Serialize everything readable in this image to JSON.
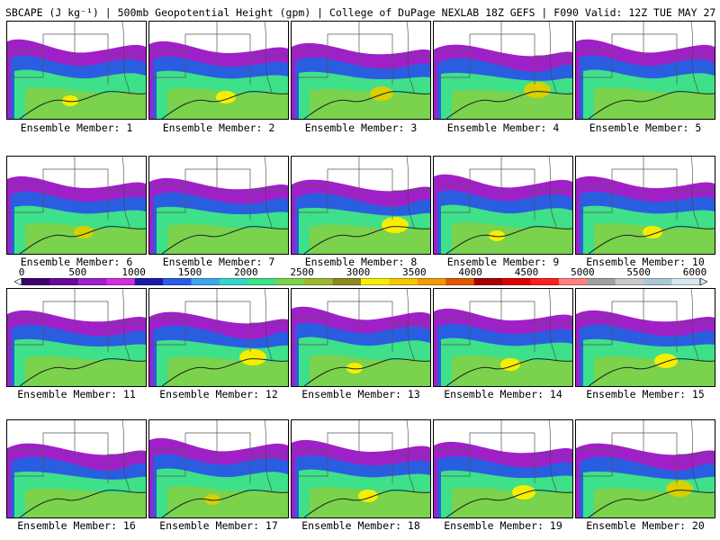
{
  "header": {
    "title": "SBCAPE (J kg⁻¹) | 500mb Geopotential Height (gpm) | College of DuPage NEXLAB 18Z GEFS | F090 Valid: 12Z TUE MAY 27 2025"
  },
  "members": [
    {
      "label": "Ensemble Member: 1",
      "peak": 3500
    },
    {
      "label": "Ensemble Member: 2",
      "peak": 3500
    },
    {
      "label": "Ensemble Member: 3",
      "peak": 3000
    },
    {
      "label": "Ensemble Member: 4",
      "peak": 3000
    },
    {
      "label": "Ensemble Member: 5",
      "peak": 2500
    },
    {
      "label": "Ensemble Member: 6",
      "peak": 3000
    },
    {
      "label": "Ensemble Member: 7",
      "peak": 2500
    },
    {
      "label": "Ensemble Member: 8",
      "peak": 3500
    },
    {
      "label": "Ensemble Member: 9",
      "peak": 3500
    },
    {
      "label": "Ensemble Member: 10",
      "peak": 3500
    },
    {
      "label": "Ensemble Member: 11",
      "peak": 2500
    },
    {
      "label": "Ensemble Member: 12",
      "peak": 3500
    },
    {
      "label": "Ensemble Member: 13",
      "peak": 3500
    },
    {
      "label": "Ensemble Member: 14",
      "peak": 3500
    },
    {
      "label": "Ensemble Member: 15",
      "peak": 3500
    },
    {
      "label": "Ensemble Member: 16",
      "peak": 2500
    },
    {
      "label": "Ensemble Member: 17",
      "peak": 3000
    },
    {
      "label": "Ensemble Member: 18",
      "peak": 3500
    },
    {
      "label": "Ensemble Member: 19",
      "peak": 3500
    },
    {
      "label": "Ensemble Member: 20",
      "peak": 3000
    }
  ],
  "colorbar": {
    "min": 0,
    "max": 6000,
    "ticks": [
      "0",
      "500",
      "1000",
      "1500",
      "2000",
      "2500",
      "3000",
      "3500",
      "4000",
      "4500",
      "5000",
      "5500",
      "6000"
    ],
    "colors": [
      "#3d006b",
      "#6a0a9a",
      "#a020c8",
      "#d42ee0",
      "#1a1aa8",
      "#2a5ee0",
      "#3fa6ea",
      "#38d6c8",
      "#3ee08a",
      "#7bd24c",
      "#99b830",
      "#8a8a22",
      "#f6ee00",
      "#f6c800",
      "#f49a00",
      "#e05a00",
      "#a80000",
      "#dc0000",
      "#ff2020",
      "#ff8080",
      "#a0a0a0",
      "#c8c8c8",
      "#a8c8d8",
      "#d8e8f0"
    ]
  }
}
